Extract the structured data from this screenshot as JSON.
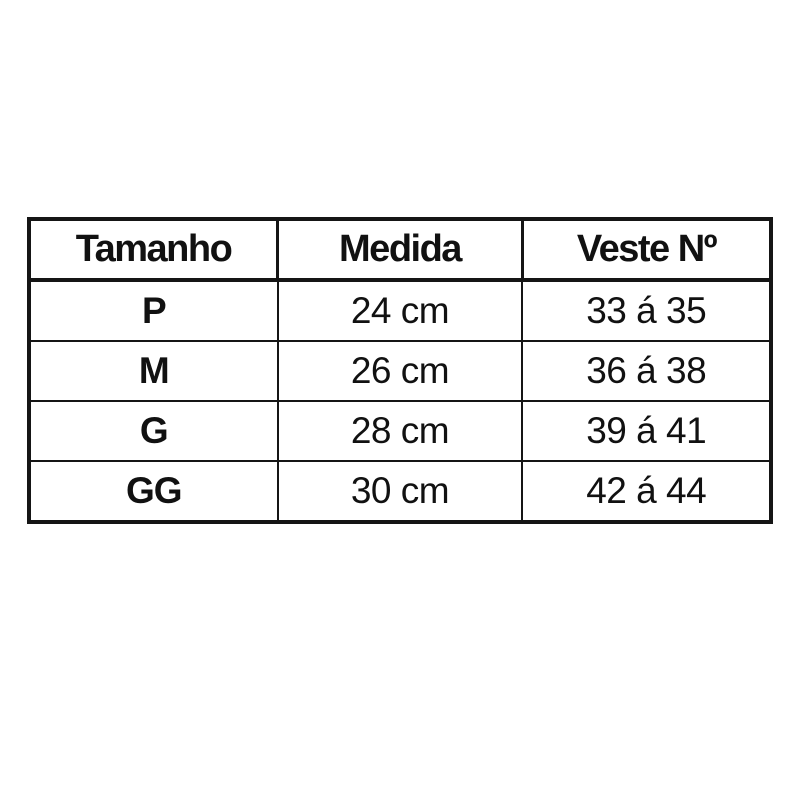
{
  "chart_data": {
    "type": "table",
    "columns": [
      "Tamanho",
      "Medida",
      "Veste Nº"
    ],
    "rows": [
      [
        "P",
        "24 cm",
        "33 á 35"
      ],
      [
        "M",
        "26 cm",
        "36 á 38"
      ],
      [
        "G",
        "28 cm",
        "39 á 41"
      ],
      [
        "GG",
        "30 cm",
        "42 á 44"
      ]
    ]
  },
  "colors": {
    "border": "#151515",
    "text": "#111111",
    "background": "#ffffff"
  }
}
